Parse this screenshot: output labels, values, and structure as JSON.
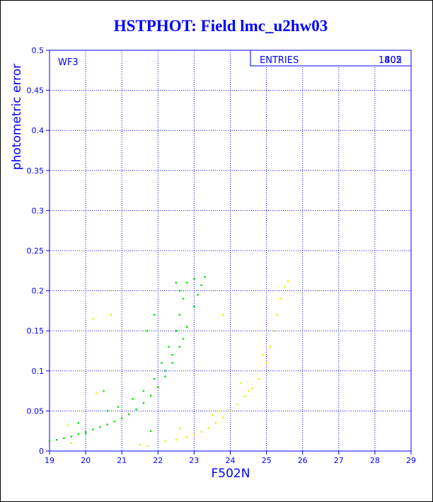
{
  "chart_data": {
    "type": "scatter",
    "title": "HSTPHOT: Field lmc_u2hw03",
    "xlabel": "F502N",
    "ylabel": "photometric error",
    "xlim": [
      19,
      29
    ],
    "ylim": [
      0,
      0.5
    ],
    "x_ticks": [
      "19",
      "20",
      "21",
      "22",
      "23",
      "24",
      "25",
      "26",
      "27",
      "28",
      "29"
    ],
    "y_ticks": [
      "0",
      "0.05",
      "0.1",
      "0.15",
      "0.2",
      "0.25",
      "0.3",
      "0.35",
      "0.4",
      "0.45",
      "0.5"
    ],
    "grid": true,
    "panel_label": "WF3",
    "stats_box": {
      "label": "ENTRIES",
      "value_a": "1805",
      "value_b": "402"
    },
    "colors": {
      "axis": "#0000ff",
      "grid": "#0000ff",
      "series_main": "#00e000",
      "series_second": "#f0f000"
    },
    "series": [
      {
        "color": "#00e000",
        "points": [
          [
            19.0,
            0.013
          ],
          [
            19.2,
            0.014
          ],
          [
            19.4,
            0.016
          ],
          [
            19.6,
            0.018
          ],
          [
            19.8,
            0.021
          ],
          [
            20.0,
            0.024
          ],
          [
            20.2,
            0.027
          ],
          [
            20.4,
            0.03
          ],
          [
            20.6,
            0.033
          ],
          [
            20.8,
            0.037
          ],
          [
            21.0,
            0.041
          ],
          [
            21.2,
            0.046
          ],
          [
            21.4,
            0.052
          ],
          [
            21.6,
            0.06
          ],
          [
            21.8,
            0.069
          ],
          [
            22.0,
            0.08
          ],
          [
            22.2,
            0.093
          ],
          [
            22.4,
            0.11
          ],
          [
            22.6,
            0.13
          ],
          [
            22.8,
            0.155
          ],
          [
            23.0,
            0.18
          ],
          [
            23.1,
            0.195
          ],
          [
            23.2,
            0.207
          ],
          [
            23.3,
            0.217
          ],
          [
            20.6,
            0.05
          ],
          [
            20.9,
            0.055
          ],
          [
            21.3,
            0.065
          ],
          [
            21.6,
            0.075
          ],
          [
            21.9,
            0.09
          ],
          [
            22.1,
            0.11
          ],
          [
            22.3,
            0.13
          ],
          [
            22.5,
            0.15
          ],
          [
            22.6,
            0.17
          ],
          [
            22.7,
            0.19
          ],
          [
            22.5,
            0.21
          ],
          [
            22.6,
            0.2
          ],
          [
            22.8,
            0.21
          ],
          [
            23.0,
            0.215
          ],
          [
            22.7,
            0.14
          ],
          [
            22.4,
            0.12
          ],
          [
            22.2,
            0.1
          ],
          [
            21.7,
            0.15
          ],
          [
            21.9,
            0.17
          ],
          [
            20.2,
            0.165
          ],
          [
            20.5,
            0.075
          ],
          [
            19.8,
            0.035
          ],
          [
            20.0,
            0.022
          ],
          [
            21.8,
            0.025
          ]
        ]
      },
      {
        "color": "#f0f000",
        "points": [
          [
            22.2,
            0.012
          ],
          [
            22.5,
            0.014
          ],
          [
            22.8,
            0.017
          ],
          [
            23.0,
            0.02
          ],
          [
            23.2,
            0.024
          ],
          [
            23.4,
            0.029
          ],
          [
            23.6,
            0.035
          ],
          [
            23.8,
            0.042
          ],
          [
            24.0,
            0.05
          ],
          [
            24.2,
            0.058
          ],
          [
            24.4,
            0.068
          ],
          [
            24.6,
            0.078
          ],
          [
            24.8,
            0.09
          ],
          [
            25.0,
            0.11
          ],
          [
            25.1,
            0.13
          ],
          [
            25.2,
            0.15
          ],
          [
            25.3,
            0.17
          ],
          [
            25.4,
            0.19
          ],
          [
            25.5,
            0.205
          ],
          [
            25.6,
            0.212
          ],
          [
            24.3,
            0.085
          ],
          [
            24.5,
            0.075
          ],
          [
            23.7,
            0.05
          ],
          [
            23.5,
            0.045
          ],
          [
            24.9,
            0.12
          ],
          [
            20.2,
            0.165
          ],
          [
            20.7,
            0.17
          ],
          [
            23.8,
            0.17
          ],
          [
            21.5,
            0.008
          ],
          [
            21.7,
            0.006
          ],
          [
            20.3,
            0.072
          ],
          [
            19.5,
            0.032
          ],
          [
            19.6,
            0.01
          ],
          [
            22.6,
            0.028
          ]
        ]
      }
    ]
  }
}
